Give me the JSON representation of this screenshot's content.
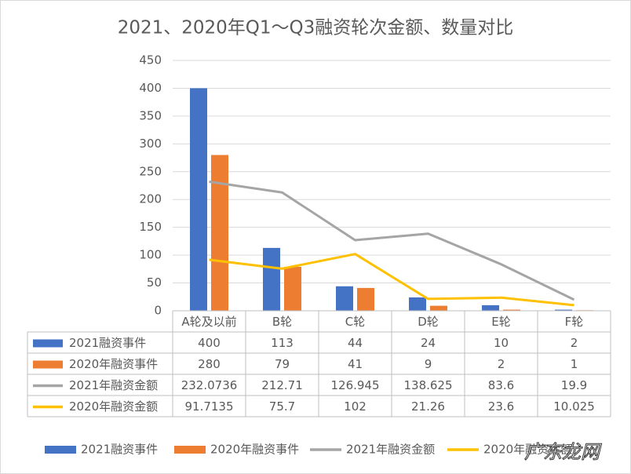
{
  "chart_data": {
    "type": "bar-line-table",
    "title": "2021、2020年Q1～Q3融资轮次金额、数量对比",
    "categories": [
      "A轮及以前",
      "B轮",
      "C轮",
      "D轮",
      "E轮",
      "F轮"
    ],
    "series": [
      {
        "name": "2021融资事件",
        "type": "bar",
        "color": "#4472c4",
        "values": [
          400,
          113,
          44,
          24,
          10,
          2
        ]
      },
      {
        "name": "2020年融资事件",
        "type": "bar",
        "color": "#ed7d31",
        "values": [
          280,
          79,
          41,
          9,
          2,
          1
        ]
      },
      {
        "name": "2021年融资金额",
        "type": "line",
        "color": "#a5a5a5",
        "values": [
          232.0736,
          212.71,
          126.945,
          138.625,
          83.6,
          19.9
        ]
      },
      {
        "name": "2020年融资金额",
        "type": "line",
        "color": "#ffc000",
        "values": [
          91.7135,
          75.7,
          102,
          21.26,
          23.6,
          10.025
        ]
      }
    ],
    "ylim": [
      0,
      450
    ],
    "yticks": [
      0,
      50,
      100,
      150,
      200,
      250,
      300,
      350,
      400,
      450
    ],
    "grid": true,
    "legend": "bottom"
  },
  "watermark": "广东龙网"
}
